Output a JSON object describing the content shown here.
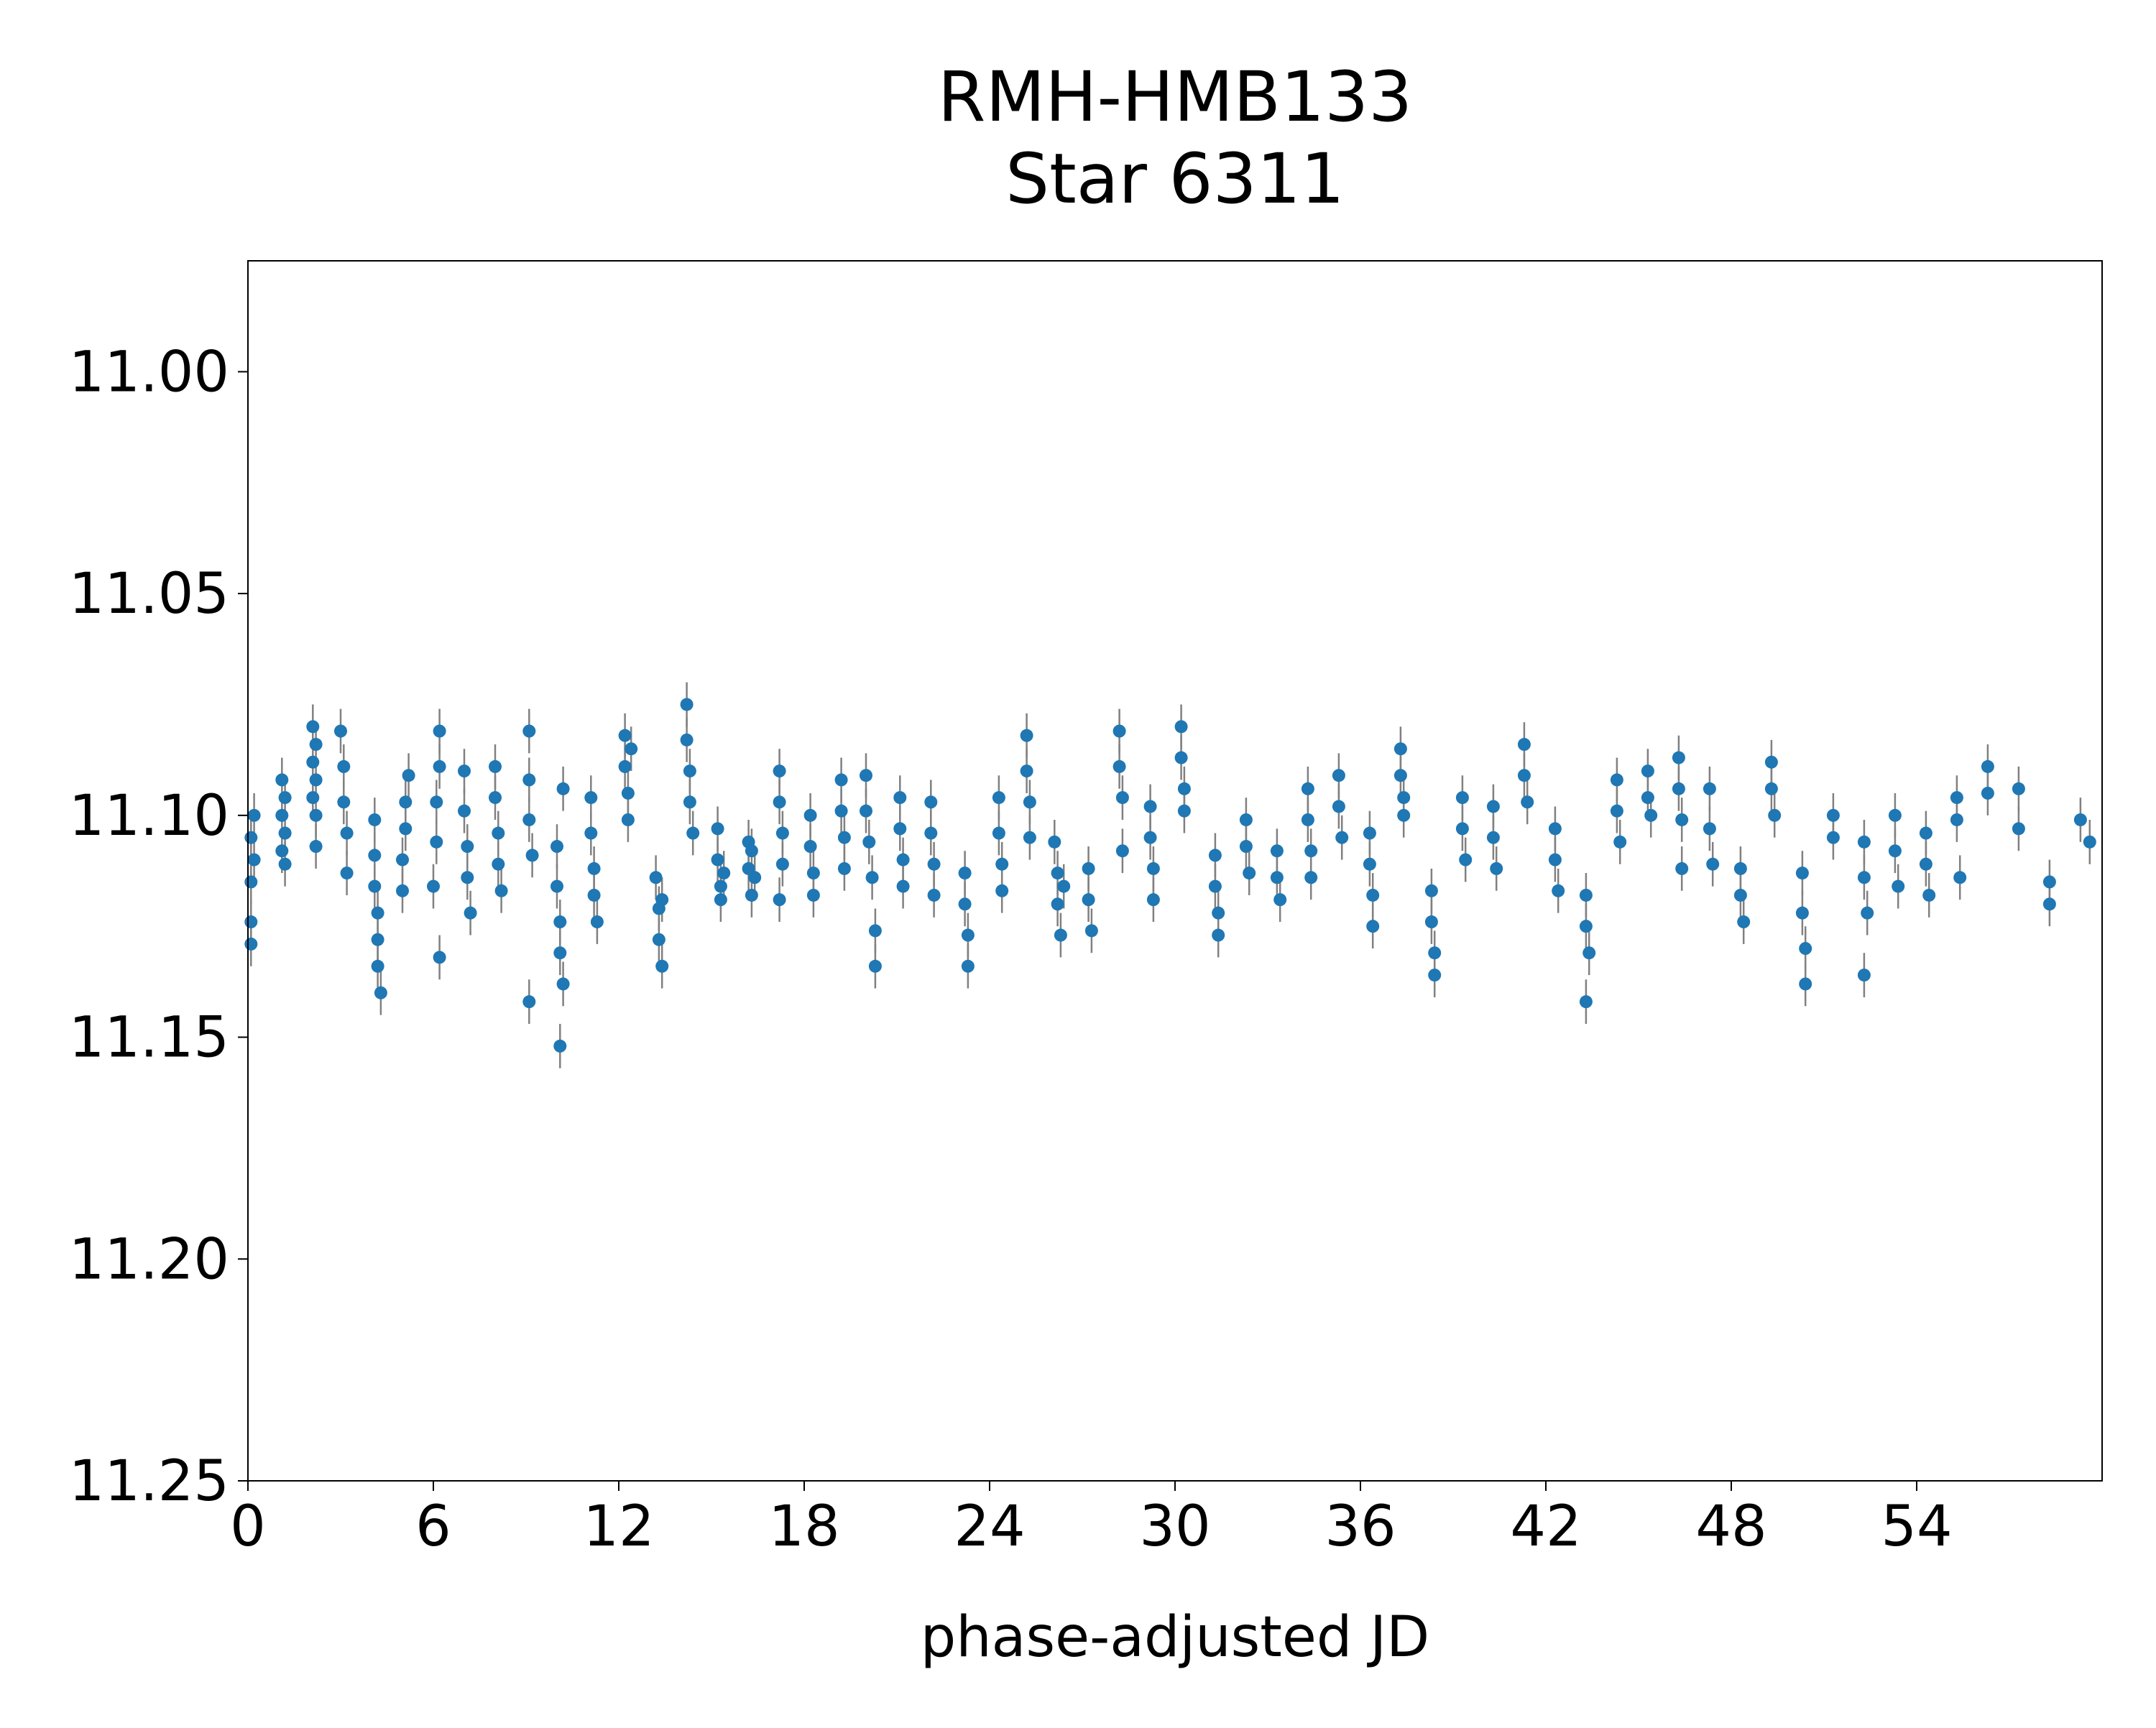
{
  "chart_data": {
    "type": "scatter",
    "title_line1": "RMH-HMB133",
    "title_line2": "Star 6311",
    "xlabel": "phase-adjusted JD",
    "ylabel": "",
    "xlim": [
      0,
      60
    ],
    "ylim": [
      11.25,
      10.975
    ],
    "y_inverted": true,
    "x_ticks": [
      "0",
      "6",
      "12",
      "18",
      "24",
      "30",
      "36",
      "42",
      "48",
      "54"
    ],
    "x_tick_values": [
      0,
      6,
      12,
      18,
      24,
      30,
      36,
      42,
      48,
      54
    ],
    "y_ticks": [
      "11.00",
      "11.05",
      "11.10",
      "11.15",
      "11.20",
      "11.25"
    ],
    "y_tick_values": [
      11.0,
      11.05,
      11.1,
      11.15,
      11.2,
      11.25
    ],
    "grid": false,
    "marker_color": "#1f77b4",
    "errorbar_color": "#808080",
    "series": [
      {
        "error": 0.005,
        "points": [
          {
            "x": 0.1,
            "y": 11.105
          },
          {
            "x": 0.1,
            "y": 11.115
          },
          {
            "x": 0.1,
            "y": 11.124
          },
          {
            "x": 0.1,
            "y": 11.129
          },
          {
            "x": 0.2,
            "y": 11.1
          },
          {
            "x": 0.2,
            "y": 11.11
          },
          {
            "x": 1.1,
            "y": 11.092
          },
          {
            "x": 1.1,
            "y": 11.1
          },
          {
            "x": 1.1,
            "y": 11.108
          },
          {
            "x": 1.2,
            "y": 11.096
          },
          {
            "x": 1.2,
            "y": 11.104
          },
          {
            "x": 1.2,
            "y": 11.111
          },
          {
            "x": 2.1,
            "y": 11.08
          },
          {
            "x": 2.1,
            "y": 11.088
          },
          {
            "x": 2.1,
            "y": 11.096
          },
          {
            "x": 2.2,
            "y": 11.084
          },
          {
            "x": 2.2,
            "y": 11.092
          },
          {
            "x": 2.2,
            "y": 11.1
          },
          {
            "x": 2.2,
            "y": 11.107
          },
          {
            "x": 3.0,
            "y": 11.081
          },
          {
            "x": 3.1,
            "y": 11.089
          },
          {
            "x": 3.1,
            "y": 11.097
          },
          {
            "x": 3.2,
            "y": 11.104
          },
          {
            "x": 3.2,
            "y": 11.113
          },
          {
            "x": 4.1,
            "y": 11.101
          },
          {
            "x": 4.1,
            "y": 11.109
          },
          {
            "x": 4.1,
            "y": 11.116
          },
          {
            "x": 4.2,
            "y": 11.122
          },
          {
            "x": 4.2,
            "y": 11.128
          },
          {
            "x": 4.2,
            "y": 11.134
          },
          {
            "x": 4.3,
            "y": 11.14
          },
          {
            "x": 5.0,
            "y": 11.117
          },
          {
            "x": 5.0,
            "y": 11.11
          },
          {
            "x": 5.1,
            "y": 11.103
          },
          {
            "x": 5.1,
            "y": 11.097
          },
          {
            "x": 5.2,
            "y": 11.091
          },
          {
            "x": 6.0,
            "y": 11.116
          },
          {
            "x": 6.1,
            "y": 11.106
          },
          {
            "x": 6.1,
            "y": 11.097
          },
          {
            "x": 6.2,
            "y": 11.089
          },
          {
            "x": 6.2,
            "y": 11.081
          },
          {
            "x": 6.2,
            "y": 11.132
          },
          {
            "x": 7.0,
            "y": 11.09
          },
          {
            "x": 7.0,
            "y": 11.099
          },
          {
            "x": 7.1,
            "y": 11.107
          },
          {
            "x": 7.1,
            "y": 11.114
          },
          {
            "x": 7.2,
            "y": 11.122
          },
          {
            "x": 8.0,
            "y": 11.089
          },
          {
            "x": 8.0,
            "y": 11.096
          },
          {
            "x": 8.1,
            "y": 11.104
          },
          {
            "x": 8.1,
            "y": 11.111
          },
          {
            "x": 8.2,
            "y": 11.117
          },
          {
            "x": 9.1,
            "y": 11.081
          },
          {
            "x": 9.1,
            "y": 11.092
          },
          {
            "x": 9.1,
            "y": 11.101
          },
          {
            "x": 9.2,
            "y": 11.109
          },
          {
            "x": 9.1,
            "y": 11.142
          },
          {
            "x": 10.0,
            "y": 11.107
          },
          {
            "x": 10.0,
            "y": 11.116
          },
          {
            "x": 10.1,
            "y": 11.124
          },
          {
            "x": 10.1,
            "y": 11.131
          },
          {
            "x": 10.2,
            "y": 11.138
          },
          {
            "x": 10.1,
            "y": 11.152
          },
          {
            "x": 10.2,
            "y": 11.094
          },
          {
            "x": 11.1,
            "y": 11.096
          },
          {
            "x": 11.1,
            "y": 11.104
          },
          {
            "x": 11.2,
            "y": 11.112
          },
          {
            "x": 11.2,
            "y": 11.118
          },
          {
            "x": 11.3,
            "y": 11.124
          },
          {
            "x": 12.2,
            "y": 11.082
          },
          {
            "x": 12.2,
            "y": 11.089
          },
          {
            "x": 12.3,
            "y": 11.095
          },
          {
            "x": 12.3,
            "y": 11.101
          },
          {
            "x": 12.4,
            "y": 11.085
          },
          {
            "x": 13.2,
            "y": 11.114
          },
          {
            "x": 13.3,
            "y": 11.121
          },
          {
            "x": 13.3,
            "y": 11.128
          },
          {
            "x": 13.4,
            "y": 11.134
          },
          {
            "x": 13.4,
            "y": 11.119
          },
          {
            "x": 14.2,
            "y": 11.075
          },
          {
            "x": 14.2,
            "y": 11.083
          },
          {
            "x": 14.3,
            "y": 11.09
          },
          {
            "x": 14.3,
            "y": 11.097
          },
          {
            "x": 14.4,
            "y": 11.104
          },
          {
            "x": 15.2,
            "y": 11.103
          },
          {
            "x": 15.2,
            "y": 11.11
          },
          {
            "x": 15.3,
            "y": 11.116
          },
          {
            "x": 15.3,
            "y": 11.119
          },
          {
            "x": 15.4,
            "y": 11.113
          },
          {
            "x": 16.2,
            "y": 11.106
          },
          {
            "x": 16.2,
            "y": 11.112
          },
          {
            "x": 16.3,
            "y": 11.118
          },
          {
            "x": 16.3,
            "y": 11.108
          },
          {
            "x": 16.4,
            "y": 11.114
          },
          {
            "x": 17.2,
            "y": 11.09
          },
          {
            "x": 17.2,
            "y": 11.097
          },
          {
            "x": 17.3,
            "y": 11.104
          },
          {
            "x": 17.3,
            "y": 11.111
          },
          {
            "x": 17.2,
            "y": 11.119
          },
          {
            "x": 18.2,
            "y": 11.1
          },
          {
            "x": 18.2,
            "y": 11.107
          },
          {
            "x": 18.3,
            "y": 11.113
          },
          {
            "x": 18.3,
            "y": 11.118
          },
          {
            "x": 19.2,
            "y": 11.092
          },
          {
            "x": 19.2,
            "y": 11.099
          },
          {
            "x": 19.3,
            "y": 11.105
          },
          {
            "x": 19.3,
            "y": 11.112
          },
          {
            "x": 20.0,
            "y": 11.091
          },
          {
            "x": 20.0,
            "y": 11.099
          },
          {
            "x": 20.1,
            "y": 11.106
          },
          {
            "x": 20.2,
            "y": 11.114
          },
          {
            "x": 20.3,
            "y": 11.126
          },
          {
            "x": 20.3,
            "y": 11.134
          },
          {
            "x": 21.1,
            "y": 11.096
          },
          {
            "x": 21.1,
            "y": 11.103
          },
          {
            "x": 21.2,
            "y": 11.11
          },
          {
            "x": 21.2,
            "y": 11.116
          },
          {
            "x": 22.1,
            "y": 11.097
          },
          {
            "x": 22.1,
            "y": 11.104
          },
          {
            "x": 22.2,
            "y": 11.111
          },
          {
            "x": 22.2,
            "y": 11.118
          },
          {
            "x": 23.2,
            "y": 11.113
          },
          {
            "x": 23.2,
            "y": 11.12
          },
          {
            "x": 23.3,
            "y": 11.127
          },
          {
            "x": 23.3,
            "y": 11.134
          },
          {
            "x": 24.3,
            "y": 11.096
          },
          {
            "x": 24.3,
            "y": 11.104
          },
          {
            "x": 24.4,
            "y": 11.111
          },
          {
            "x": 24.4,
            "y": 11.117
          },
          {
            "x": 25.2,
            "y": 11.082
          },
          {
            "x": 25.2,
            "y": 11.09
          },
          {
            "x": 25.3,
            "y": 11.097
          },
          {
            "x": 25.3,
            "y": 11.105
          },
          {
            "x": 26.1,
            "y": 11.106
          },
          {
            "x": 26.2,
            "y": 11.113
          },
          {
            "x": 26.2,
            "y": 11.12
          },
          {
            "x": 26.3,
            "y": 11.127
          },
          {
            "x": 26.4,
            "y": 11.116
          },
          {
            "x": 27.2,
            "y": 11.112
          },
          {
            "x": 27.2,
            "y": 11.119
          },
          {
            "x": 27.3,
            "y": 11.126
          },
          {
            "x": 28.2,
            "y": 11.081
          },
          {
            "x": 28.2,
            "y": 11.089
          },
          {
            "x": 28.3,
            "y": 11.096
          },
          {
            "x": 28.3,
            "y": 11.108
          },
          {
            "x": 29.2,
            "y": 11.098
          },
          {
            "x": 29.2,
            "y": 11.105
          },
          {
            "x": 29.3,
            "y": 11.112
          },
          {
            "x": 29.3,
            "y": 11.119
          },
          {
            "x": 30.2,
            "y": 11.08
          },
          {
            "x": 30.2,
            "y": 11.087
          },
          {
            "x": 30.3,
            "y": 11.094
          },
          {
            "x": 30.3,
            "y": 11.099
          },
          {
            "x": 31.3,
            "y": 11.109
          },
          {
            "x": 31.3,
            "y": 11.116
          },
          {
            "x": 31.4,
            "y": 11.122
          },
          {
            "x": 31.4,
            "y": 11.127
          },
          {
            "x": 32.3,
            "y": 11.101
          },
          {
            "x": 32.3,
            "y": 11.107
          },
          {
            "x": 32.4,
            "y": 11.113
          },
          {
            "x": 33.3,
            "y": 11.108
          },
          {
            "x": 33.3,
            "y": 11.114
          },
          {
            "x": 33.4,
            "y": 11.119
          },
          {
            "x": 34.3,
            "y": 11.094
          },
          {
            "x": 34.3,
            "y": 11.101
          },
          {
            "x": 34.4,
            "y": 11.108
          },
          {
            "x": 34.4,
            "y": 11.114
          },
          {
            "x": 35.3,
            "y": 11.091
          },
          {
            "x": 35.3,
            "y": 11.098
          },
          {
            "x": 35.4,
            "y": 11.105
          },
          {
            "x": 36.3,
            "y": 11.104
          },
          {
            "x": 36.3,
            "y": 11.111
          },
          {
            "x": 36.4,
            "y": 11.118
          },
          {
            "x": 36.4,
            "y": 11.125
          },
          {
            "x": 37.3,
            "y": 11.085
          },
          {
            "x": 37.3,
            "y": 11.091
          },
          {
            "x": 37.4,
            "y": 11.096
          },
          {
            "x": 37.4,
            "y": 11.1
          },
          {
            "x": 38.3,
            "y": 11.117
          },
          {
            "x": 38.3,
            "y": 11.124
          },
          {
            "x": 38.4,
            "y": 11.131
          },
          {
            "x": 38.4,
            "y": 11.136
          },
          {
            "x": 39.3,
            "y": 11.096
          },
          {
            "x": 39.3,
            "y": 11.103
          },
          {
            "x": 39.4,
            "y": 11.11
          },
          {
            "x": 40.3,
            "y": 11.098
          },
          {
            "x": 40.3,
            "y": 11.105
          },
          {
            "x": 40.4,
            "y": 11.112
          },
          {
            "x": 41.3,
            "y": 11.084
          },
          {
            "x": 41.3,
            "y": 11.091
          },
          {
            "x": 41.4,
            "y": 11.097
          },
          {
            "x": 42.3,
            "y": 11.103
          },
          {
            "x": 42.3,
            "y": 11.11
          },
          {
            "x": 42.4,
            "y": 11.117
          },
          {
            "x": 43.3,
            "y": 11.118
          },
          {
            "x": 43.3,
            "y": 11.125
          },
          {
            "x": 43.4,
            "y": 11.131
          },
          {
            "x": 43.3,
            "y": 11.142
          },
          {
            "x": 44.3,
            "y": 11.092
          },
          {
            "x": 44.3,
            "y": 11.099
          },
          {
            "x": 44.4,
            "y": 11.106
          },
          {
            "x": 45.3,
            "y": 11.09
          },
          {
            "x": 45.3,
            "y": 11.096
          },
          {
            "x": 45.4,
            "y": 11.1
          },
          {
            "x": 46.3,
            "y": 11.087
          },
          {
            "x": 46.3,
            "y": 11.094
          },
          {
            "x": 46.4,
            "y": 11.101
          },
          {
            "x": 46.4,
            "y": 11.112
          },
          {
            "x": 47.3,
            "y": 11.094
          },
          {
            "x": 47.3,
            "y": 11.103
          },
          {
            "x": 47.4,
            "y": 11.111
          },
          {
            "x": 48.3,
            "y": 11.112
          },
          {
            "x": 48.3,
            "y": 11.118
          },
          {
            "x": 48.4,
            "y": 11.124
          },
          {
            "x": 49.3,
            "y": 11.088
          },
          {
            "x": 49.3,
            "y": 11.094
          },
          {
            "x": 49.4,
            "y": 11.1
          },
          {
            "x": 50.3,
            "y": 11.113
          },
          {
            "x": 50.3,
            "y": 11.122
          },
          {
            "x": 50.4,
            "y": 11.13
          },
          {
            "x": 50.4,
            "y": 11.138
          },
          {
            "x": 51.3,
            "y": 11.1
          },
          {
            "x": 51.3,
            "y": 11.105
          },
          {
            "x": 52.3,
            "y": 11.106
          },
          {
            "x": 52.3,
            "y": 11.114
          },
          {
            "x": 52.4,
            "y": 11.122
          },
          {
            "x": 52.3,
            "y": 11.136
          },
          {
            "x": 53.3,
            "y": 11.1
          },
          {
            "x": 53.3,
            "y": 11.108
          },
          {
            "x": 53.4,
            "y": 11.116
          },
          {
            "x": 54.3,
            "y": 11.104
          },
          {
            "x": 54.3,
            "y": 11.111
          },
          {
            "x": 54.4,
            "y": 11.118
          },
          {
            "x": 55.3,
            "y": 11.096
          },
          {
            "x": 55.3,
            "y": 11.101
          },
          {
            "x": 55.4,
            "y": 11.114
          },
          {
            "x": 56.3,
            "y": 11.089
          },
          {
            "x": 56.3,
            "y": 11.095
          },
          {
            "x": 57.3,
            "y": 11.094
          },
          {
            "x": 57.3,
            "y": 11.103
          },
          {
            "x": 58.3,
            "y": 11.115
          },
          {
            "x": 58.3,
            "y": 11.12
          },
          {
            "x": 59.3,
            "y": 11.101
          },
          {
            "x": 59.6,
            "y": 11.106
          }
        ]
      }
    ]
  }
}
